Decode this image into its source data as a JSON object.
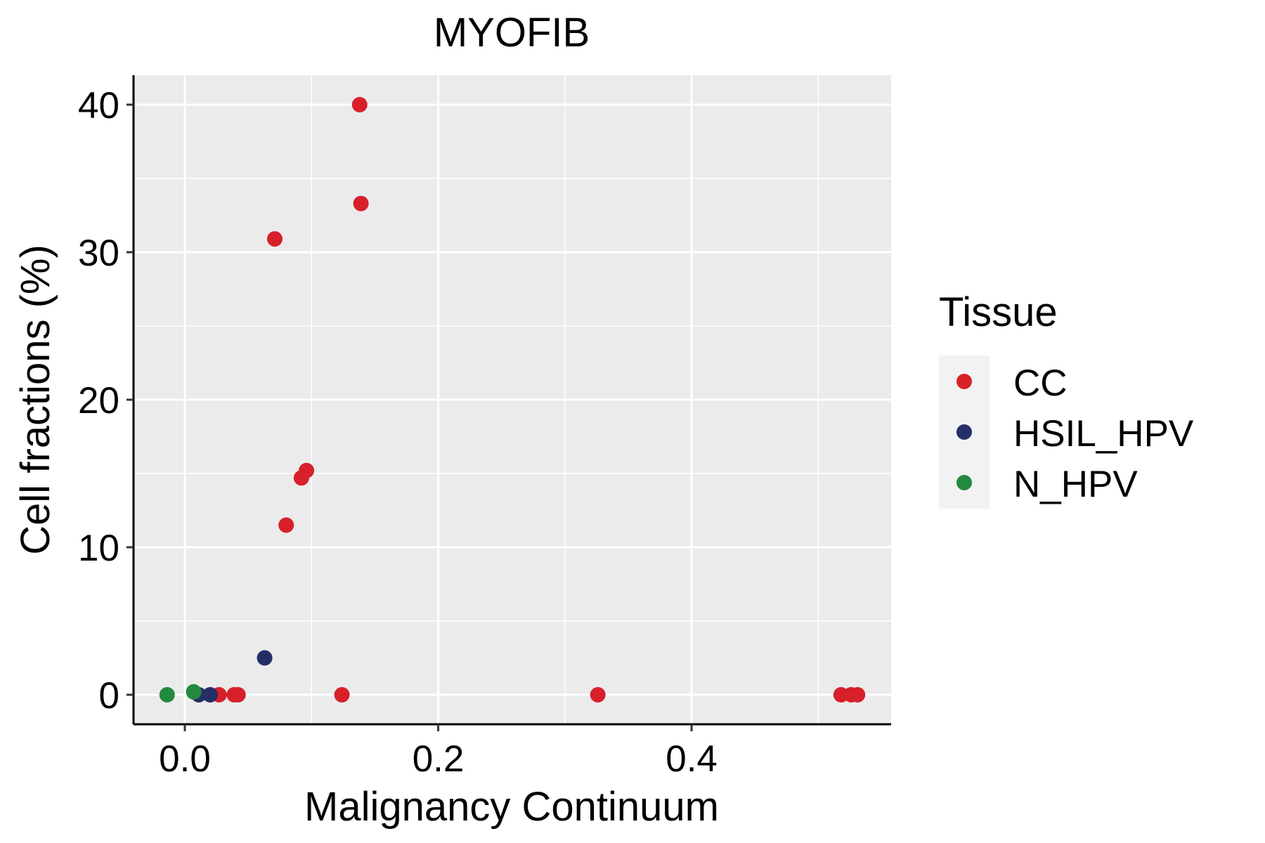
{
  "chart_data": {
    "type": "scatter",
    "title": "MYOFIB",
    "xlabel": "Malignancy Continuum",
    "ylabel": "Cell fractions (%)",
    "xlim": [
      -0.0405,
      0.5575
    ],
    "ylim": [
      -2,
      42
    ],
    "x_ticks": [
      0.0,
      0.2,
      0.4
    ],
    "x_tick_labels": [
      "0.0",
      "0.2",
      "0.4"
    ],
    "x_minor_ticks": [
      0.1,
      0.3,
      0.5
    ],
    "y_ticks": [
      0,
      10,
      20,
      30,
      40
    ],
    "y_tick_labels": [
      "0",
      "10",
      "20",
      "30",
      "40"
    ],
    "y_minor_ticks": [
      5,
      15,
      25,
      35
    ],
    "grid": true,
    "legend": {
      "title": "Tissue",
      "position": "right"
    },
    "series": [
      {
        "name": "CC",
        "color": "#d7202a",
        "points": [
          {
            "x": 0.138,
            "y": 40.0
          },
          {
            "x": 0.139,
            "y": 33.3
          },
          {
            "x": 0.071,
            "y": 30.9
          },
          {
            "x": 0.096,
            "y": 15.2
          },
          {
            "x": 0.092,
            "y": 14.7
          },
          {
            "x": 0.08,
            "y": 11.5
          },
          {
            "x": 0.027,
            "y": 0.0
          },
          {
            "x": 0.039,
            "y": 0.0
          },
          {
            "x": 0.042,
            "y": 0.0
          },
          {
            "x": 0.124,
            "y": 0.0
          },
          {
            "x": 0.326,
            "y": 0.0
          },
          {
            "x": 0.518,
            "y": 0.0
          },
          {
            "x": 0.526,
            "y": 0.0
          },
          {
            "x": 0.531,
            "y": 0.0
          }
        ]
      },
      {
        "name": "HSIL_HPV",
        "color": "#252f67",
        "points": [
          {
            "x": 0.063,
            "y": 2.5
          },
          {
            "x": 0.011,
            "y": 0.0
          },
          {
            "x": 0.02,
            "y": 0.0
          }
        ]
      },
      {
        "name": "N_HPV",
        "color": "#23893e",
        "points": [
          {
            "x": -0.014,
            "y": 0.0
          },
          {
            "x": 0.007,
            "y": 0.2
          }
        ]
      }
    ]
  }
}
